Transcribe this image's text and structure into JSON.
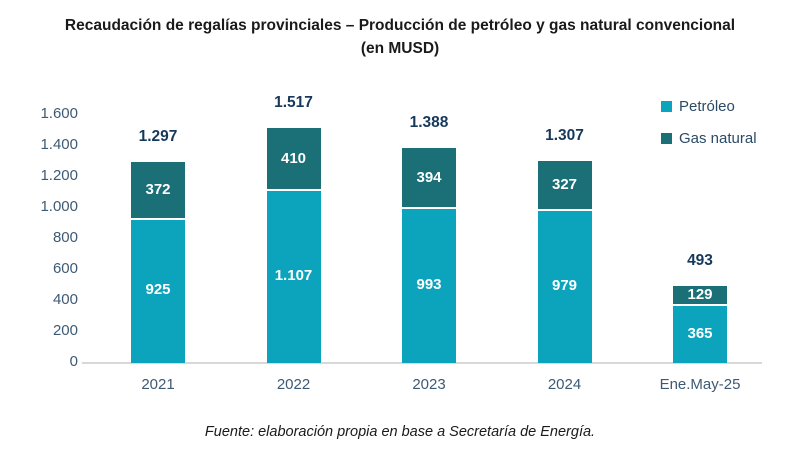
{
  "title": {
    "line1": "Recaudación de regalías provinciales – Producción de petróleo y gas natural convencional",
    "line2": "(en MUSD)"
  },
  "footer": "Fuente: elaboración propia en base a Secretaría de Energía.",
  "legend": {
    "items": [
      {
        "label": "Petróleo",
        "color": "#0ba4bc"
      },
      {
        "label": "Gas natural",
        "color": "#1b6f76"
      }
    ]
  },
  "colors": {
    "petroleo": "#0ba4bc",
    "gas_natural": "#1b6f76",
    "axis_text": "#3d5a75",
    "total_label_text": "#16395b",
    "segment_label_text": "#ffffff",
    "baseline": "#d8d8d8",
    "title_text": "#1a1a1a"
  },
  "chart_data": {
    "type": "bar",
    "stacked": true,
    "title": "Recaudación de regalías provinciales – Producción de petróleo y gas natural convencional (en MUSD)",
    "categories": [
      "2021",
      "2022",
      "2023",
      "2024",
      "Ene.May-25"
    ],
    "series": [
      {
        "name": "Petróleo",
        "color": "#0ba4bc",
        "values": [
          925,
          1107,
          993,
          979,
          365
        ],
        "value_labels": [
          "925",
          "1.107",
          "993",
          "979",
          "365"
        ]
      },
      {
        "name": "Gas natural",
        "color": "#1b6f76",
        "values": [
          372,
          410,
          394,
          327,
          129
        ],
        "value_labels": [
          "372",
          "410",
          "394",
          "327",
          "129"
        ]
      }
    ],
    "totals": [
      1297,
      1517,
      1388,
      1307,
      493
    ],
    "total_labels": [
      "1.297",
      "1.517",
      "1.388",
      "1.307",
      "493"
    ],
    "xlabel": "",
    "ylabel": "",
    "ylim": [
      0,
      1600
    ],
    "ytick_step": 200,
    "ytick_labels": [
      "0",
      "200",
      "400",
      "600",
      "800",
      "1.000",
      "1.200",
      "1.400",
      "1.600"
    ],
    "grid": false,
    "legend_position": "top-right"
  }
}
